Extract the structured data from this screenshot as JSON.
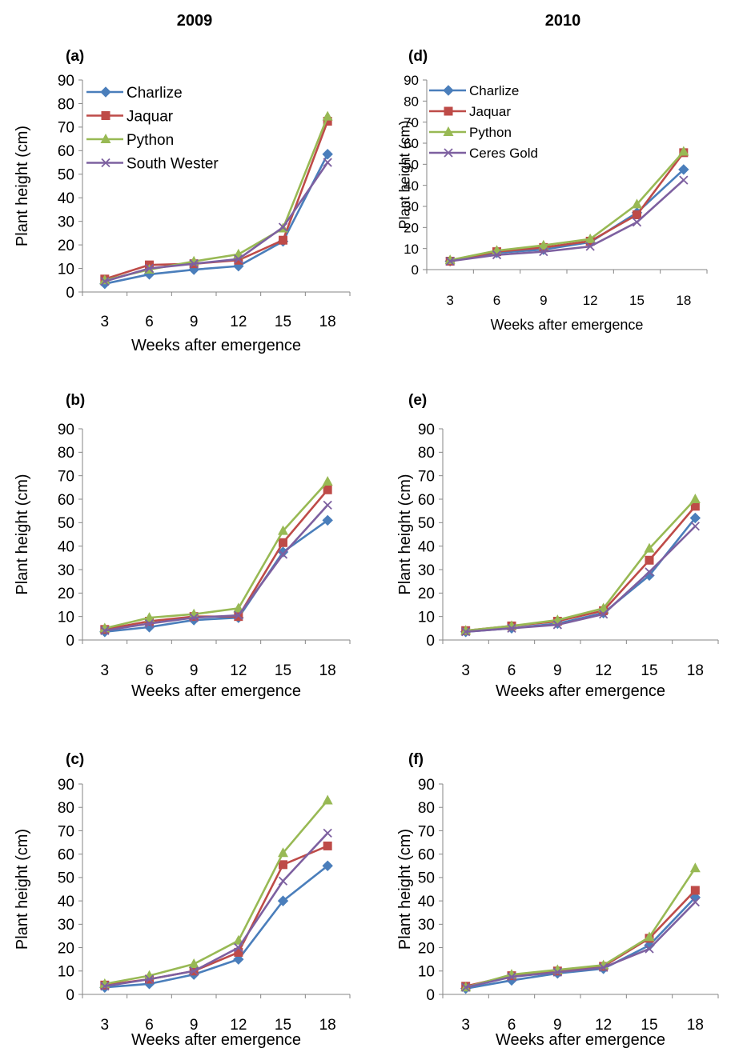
{
  "column_titles": [
    "2009",
    "2010"
  ],
  "colors": {
    "Charlize": "#4A7EBB",
    "Jaquar": "#BE4B48",
    "Python": "#98B954",
    "fourth": "#7D60A0"
  },
  "chart_data": [
    {
      "panel": "(a)",
      "type": "line",
      "xlabel": "Weeks after emergence",
      "ylabel": "Plant height (cm)",
      "categories": [
        "3",
        "6",
        "9",
        "12",
        "15",
        "18"
      ],
      "ylim": [
        0,
        90
      ],
      "yticks": [
        0,
        10,
        20,
        30,
        40,
        50,
        60,
        70,
        80,
        90
      ],
      "legend": "top-left",
      "series": [
        {
          "name": "Charlize",
          "marker": "diamond",
          "values": [
            3.5,
            7.5,
            9.5,
            11,
            21.5,
            58.5
          ]
        },
        {
          "name": "Jaquar",
          "marker": "square",
          "values": [
            5.5,
            11.5,
            12,
            13.5,
            22,
            72.5
          ]
        },
        {
          "name": "Python",
          "marker": "triangle",
          "values": [
            5,
            9.5,
            13,
            16,
            27,
            74.5
          ]
        },
        {
          "name": "South Wester",
          "marker": "x",
          "values": [
            4.5,
            10,
            12,
            14,
            27.5,
            55
          ]
        }
      ]
    },
    {
      "panel": "(b)",
      "type": "line",
      "xlabel": "Weeks after emergence",
      "ylabel": "Plant height (cm)",
      "categories": [
        "3",
        "6",
        "9",
        "12",
        "15",
        "18"
      ],
      "ylim": [
        0,
        90
      ],
      "yticks": [
        0,
        10,
        20,
        30,
        40,
        50,
        60,
        70,
        80,
        90
      ],
      "series": [
        {
          "name": "Charlize",
          "marker": "diamond",
          "values": [
            3.5,
            5.5,
            8.5,
            9.5,
            37.5,
            51
          ]
        },
        {
          "name": "Jaquar",
          "marker": "square",
          "values": [
            4.5,
            8,
            10,
            10,
            41.5,
            64
          ]
        },
        {
          "name": "Python",
          "marker": "triangle",
          "values": [
            5,
            9.5,
            11,
            13.5,
            46.5,
            67.5
          ]
        },
        {
          "name": "South Wester",
          "marker": "x",
          "values": [
            4,
            7,
            9.5,
            10.5,
            36.5,
            57.5
          ]
        }
      ]
    },
    {
      "panel": "(c)",
      "type": "line",
      "xlabel": "Weeks after emergence",
      "ylabel": "Plant height (cm)",
      "categories": [
        "3",
        "6",
        "9",
        "12",
        "15",
        "18"
      ],
      "ylim": [
        0,
        90
      ],
      "yticks": [
        0,
        10,
        20,
        30,
        40,
        50,
        60,
        70,
        80,
        90
      ],
      "series": [
        {
          "name": "Charlize",
          "marker": "diamond",
          "values": [
            3,
            4.5,
            8.5,
            15,
            40,
            55
          ]
        },
        {
          "name": "Jaquar",
          "marker": "square",
          "values": [
            4,
            6.5,
            10,
            18,
            55.5,
            63.5
          ]
        },
        {
          "name": "Python",
          "marker": "triangle",
          "values": [
            4.5,
            8,
            13,
            23,
            60.5,
            83
          ]
        },
        {
          "name": "South Wester",
          "marker": "x",
          "values": [
            3.5,
            6.5,
            10,
            20,
            48.5,
            69
          ]
        }
      ]
    },
    {
      "panel": "(d)",
      "type": "line",
      "xlabel": "Weeks after emergence",
      "ylabel": "Plant height (cm)",
      "categories": [
        "3",
        "6",
        "9",
        "12",
        "15",
        "18"
      ],
      "ylim": [
        0,
        90
      ],
      "yticks": [
        0,
        10,
        20,
        30,
        40,
        50,
        60,
        70,
        80,
        90
      ],
      "legend": "top-left",
      "series": [
        {
          "name": "Charlize",
          "marker": "diamond",
          "values": [
            4,
            8,
            9.5,
            13,
            27,
            47.5
          ]
        },
        {
          "name": "Jaquar",
          "marker": "square",
          "values": [
            4,
            8.5,
            10.5,
            13.5,
            26,
            55.5
          ]
        },
        {
          "name": "Python",
          "marker": "triangle",
          "values": [
            4.5,
            9,
            11.5,
            14.5,
            31,
            56
          ]
        },
        {
          "name": "Ceres Gold",
          "marker": "x",
          "values": [
            4,
            7,
            8.5,
            11,
            22.5,
            42.5
          ]
        }
      ]
    },
    {
      "panel": "(e)",
      "type": "line",
      "xlabel": "Weeks after emergence",
      "ylabel": "Plant height (cm)",
      "categories": [
        "3",
        "6",
        "9",
        "12",
        "15",
        "18"
      ],
      "ylim": [
        0,
        90
      ],
      "yticks": [
        0,
        10,
        20,
        30,
        40,
        50,
        60,
        70,
        80,
        90
      ],
      "series": [
        {
          "name": "Charlize",
          "marker": "diamond",
          "values": [
            3.5,
            5,
            7,
            11.5,
            27.5,
            52
          ]
        },
        {
          "name": "Jaquar",
          "marker": "square",
          "values": [
            4,
            6,
            8,
            12.5,
            34,
            57
          ]
        },
        {
          "name": "Python",
          "marker": "triangle",
          "values": [
            4,
            6,
            8.5,
            13.5,
            39,
            60
          ]
        },
        {
          "name": "Ceres Gold",
          "marker": "x",
          "values": [
            3.5,
            5,
            6.5,
            11,
            29,
            48.5
          ]
        }
      ]
    },
    {
      "panel": "(f)",
      "type": "line",
      "xlabel": "Weeks after emergence",
      "ylabel": "Plant height (cm)",
      "categories": [
        "3",
        "6",
        "9",
        "12",
        "15",
        "18"
      ],
      "ylim": [
        0,
        90
      ],
      "yticks": [
        0,
        10,
        20,
        30,
        40,
        50,
        60,
        70,
        80,
        90
      ],
      "series": [
        {
          "name": "Charlize",
          "marker": "diamond",
          "values": [
            2.5,
            6,
            9,
            11,
            21,
            41.5
          ]
        },
        {
          "name": "Jaquar",
          "marker": "square",
          "values": [
            3.5,
            8,
            10,
            12,
            24,
            44.5
          ]
        },
        {
          "name": "Python",
          "marker": "triangle",
          "values": [
            3,
            8.5,
            10.5,
            12.5,
            24.5,
            54
          ]
        },
        {
          "name": "Ceres Gold",
          "marker": "x",
          "values": [
            3,
            7.5,
            9.5,
            11.5,
            19.5,
            39.5
          ]
        }
      ]
    }
  ]
}
